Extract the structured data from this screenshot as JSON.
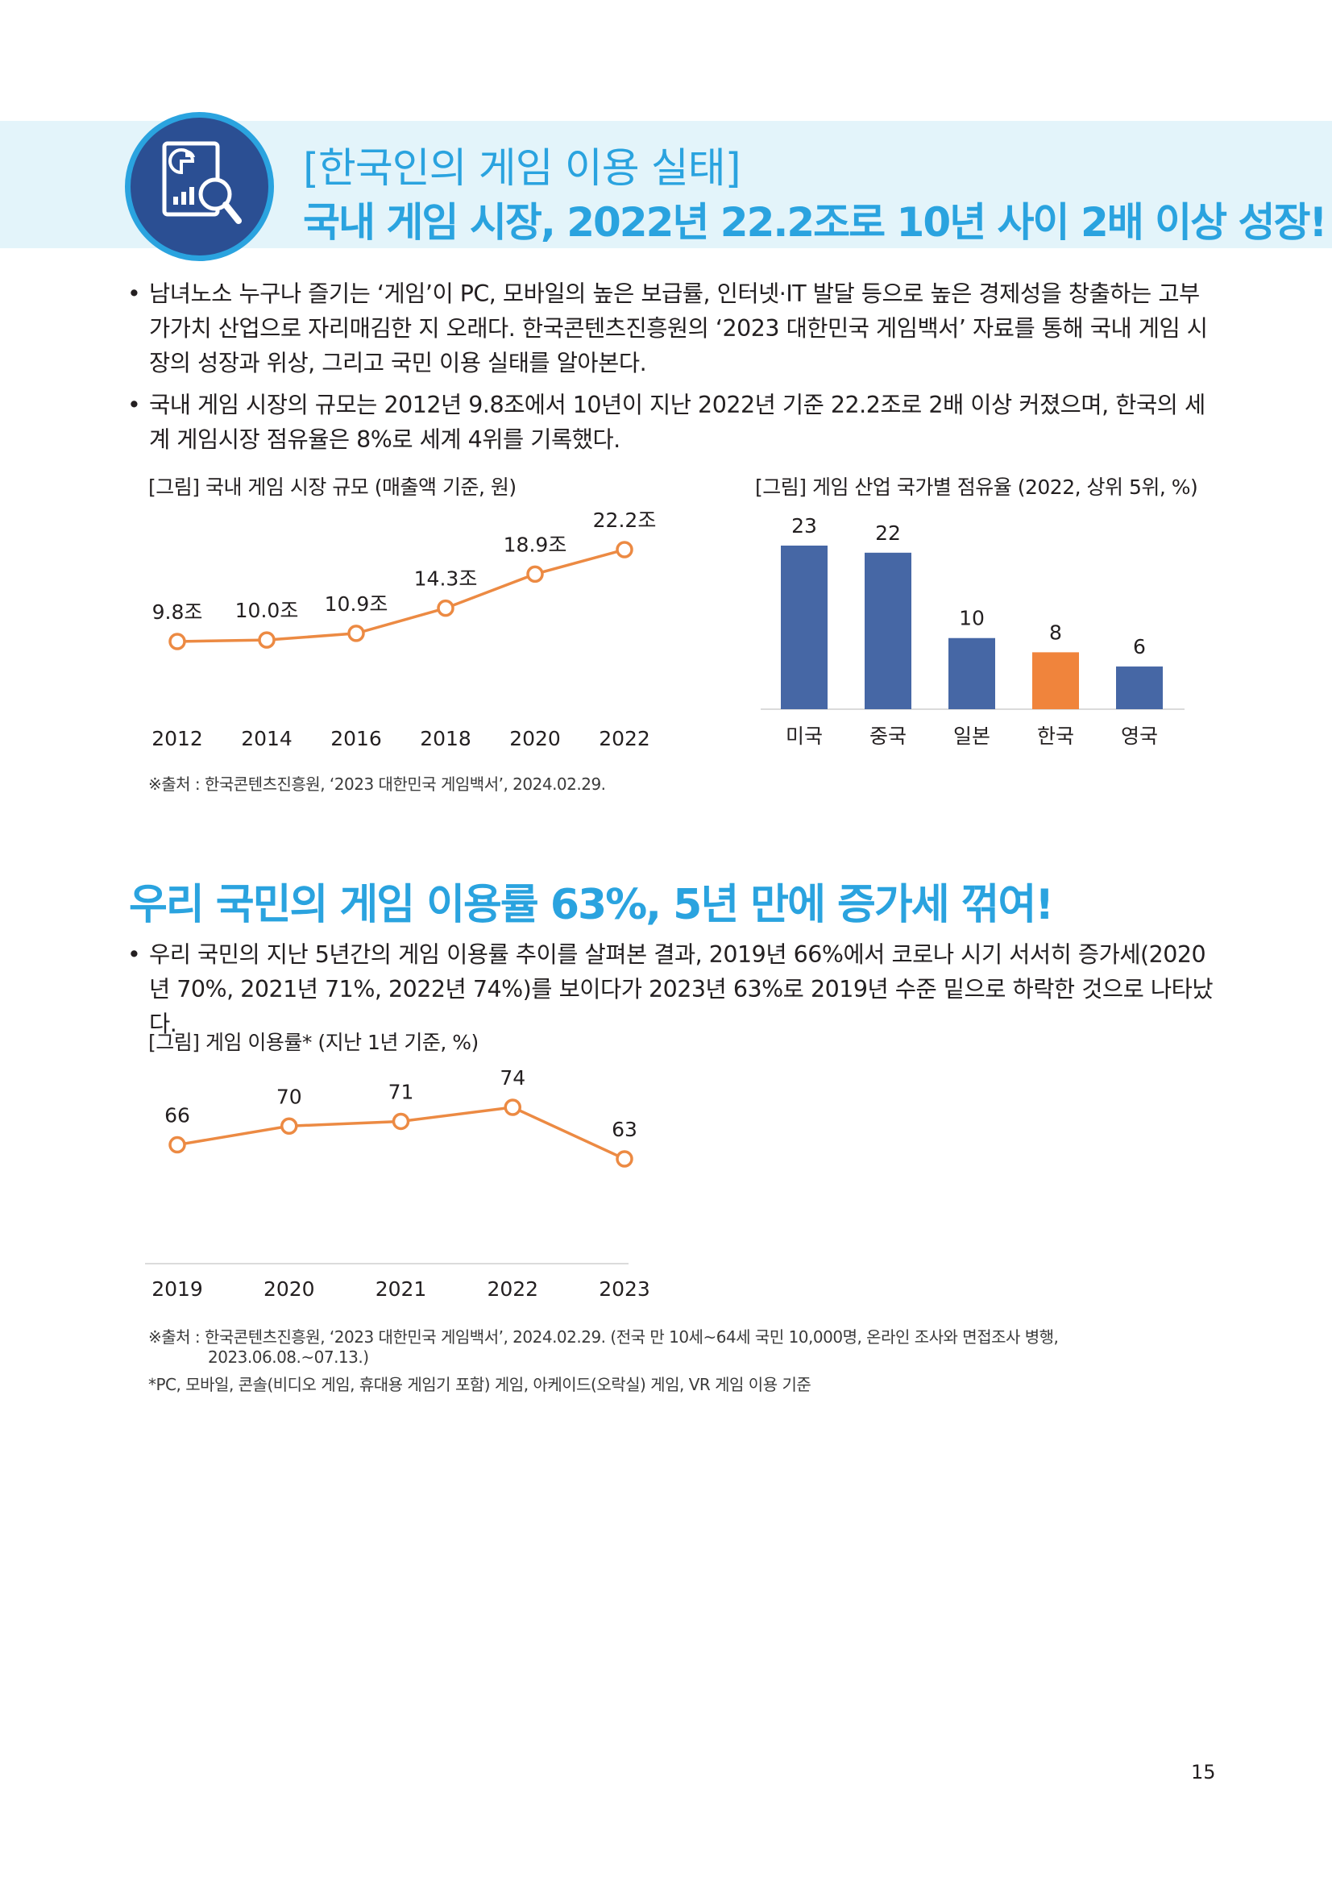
{
  "header": {
    "subtitle": "[한국인의 게임 이용 실태]",
    "title": "국내 게임 시장, 2022년 22.2조로 10년 사이 2배 이상 성장!",
    "icon": "report-chart-magnifier-icon"
  },
  "bullets": [
    "남녀노소 누구나 즐기는 ‘게임’이 PC, 모바일의 높은 보급률, 인터넷·IT 발달 등으로 높은 경제성을 창출하는 고부가가치 산업으로 자리매김한 지 오래다. 한국콘텐츠진흥원의 ‘2023 대한민국 게임백서’ 자료를 통해 국내 게임 시장의 성장과 위상, 그리고 국민 이용 실태를 알아본다.",
    "국내 게임 시장의 규모는 2012년 9.8조에서 10년이 지난 2022년 기준 22.2조로 2배 이상 커졌으며, 한국의 세계 게임시장 점유율은 8%로 세계 4위를 기록했다."
  ],
  "bullet_mark": "•",
  "chart1_caption": "[그림] 국내 게임 시장 규모 (매출액 기준, 원)",
  "chart2_caption": "[그림] 게임 산업 국가별 점유율 (2022, 상위 5위, %)",
  "source1": "※출처 : 한국콘텐츠진흥원, ‘2023 대한민국 게임백서’, 2024.02.29.",
  "section2": {
    "title": "우리 국민의 게임 이용률 63%, 5년 만에 증가세 꺾여!",
    "bullet": "우리 국민의 지난 5년간의 게임 이용률 추이를 살펴본 결과, 2019년 66%에서 코로나 시기 서서히 증가세(2020년 70%, 2021년 71%, 2022년 74%)를 보이다가 2023년 63%로 2019년 수준 밑으로 하락한 것으로 나타났다."
  },
  "chart3_caption": "[그림] 게임 이용률* (지난 1년 기준, %)",
  "source2_line1": "※출처 : 한국콘텐츠진흥원, ‘2023 대한민국 게임백서’, 2024.02.29. (전국 만 10세~64세 국민 10,000명, 온라인 조사와 면접조사 병행,",
  "source2_line2": "2023.06.08.~07.13.)",
  "footnote": "*PC, 모바일, 콘솔(비디오 게임, 휴대용 게임기 포함) 게임, 아케이드(오락실) 게임, VR 게임 이용 기준",
  "page_number": "15",
  "colors": {
    "accent": "#2aa3df",
    "navy": "#2b4f93",
    "bar_blue": "#4667a5",
    "highlight_orange": "#f0843c",
    "line_orange": "#ec8a43"
  },
  "chart_data": [
    {
      "type": "line",
      "x": [
        "2012",
        "2014",
        "2016",
        "2018",
        "2020",
        "2022"
      ],
      "values": [
        9.8,
        10.0,
        10.9,
        14.3,
        18.9,
        22.2
      ],
      "data_labels": [
        "9.8조",
        "10.0조",
        "10.9조",
        "14.3조",
        "18.9조",
        "22.2조"
      ],
      "title": "[그림] 국내 게임 시장 규모 (매출액 기준, 원)",
      "color": "#ec8a43",
      "grid": false
    },
    {
      "type": "bar",
      "categories": [
        "미국",
        "중국",
        "일본",
        "한국",
        "영국"
      ],
      "values": [
        23,
        22,
        10,
        8,
        6
      ],
      "data_labels": [
        "23",
        "22",
        "10",
        "8",
        "6"
      ],
      "colors": [
        "#4667a5",
        "#4667a5",
        "#4667a5",
        "#f0843c",
        "#4667a5"
      ],
      "title": "[그림] 게임 산업 국가별 점유율 (2022, 상위 5위, %)",
      "ylim": [
        0,
        23
      ],
      "grid": false
    },
    {
      "type": "line",
      "x": [
        "2019",
        "2020",
        "2021",
        "2022",
        "2023"
      ],
      "values": [
        66,
        70,
        71,
        74,
        63
      ],
      "data_labels": [
        "66",
        "70",
        "71",
        "74",
        "63"
      ],
      "title": "[그림] 게임 이용률* (지난 1년 기준, %)",
      "color": "#ec8a43",
      "grid": false
    }
  ]
}
